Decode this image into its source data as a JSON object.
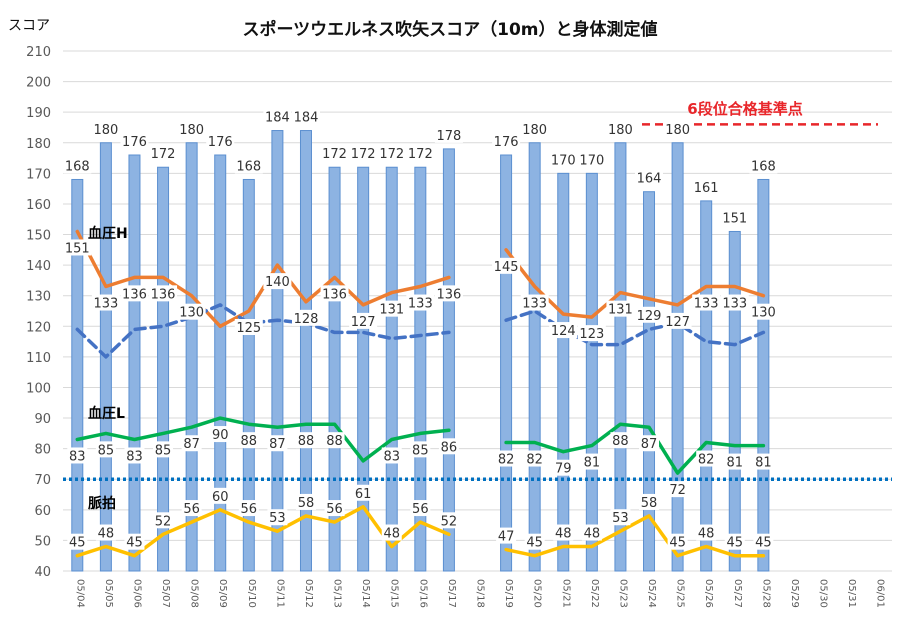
{
  "chart_data": {
    "type": "bar",
    "title": "スポーツウエルネス吹矢スコア（10m）と身体測定値",
    "ylabel": "スコア",
    "ylim": [
      40,
      210
    ],
    "yticks": [
      40,
      50,
      60,
      70,
      80,
      90,
      100,
      110,
      120,
      130,
      140,
      150,
      160,
      170,
      180,
      190,
      200,
      210
    ],
    "grid": true,
    "categories": [
      "05/04",
      "05/05",
      "05/06",
      "05/07",
      "05/08",
      "05/09",
      "05/10",
      "05/11",
      "05/12",
      "05/13",
      "05/14",
      "05/15",
      "05/16",
      "05/17",
      "05/18",
      "05/19",
      "05/20",
      "05/21",
      "05/22",
      "05/23",
      "05/24",
      "05/25",
      "05/26",
      "05/27",
      "05/28",
      "05/29",
      "05/30",
      "05/31",
      "06/01"
    ],
    "series": [
      {
        "kind": "bar",
        "color": "#8db3e2",
        "values": [
          168,
          180,
          176,
          172,
          180,
          176,
          168,
          184,
          184,
          172,
          172,
          172,
          172,
          178,
          null,
          176,
          180,
          170,
          170,
          180,
          164,
          180,
          161,
          151,
          168,
          null,
          null,
          null,
          null
        ],
        "labels": [
          "168",
          "180",
          "176",
          "172",
          "180",
          "176",
          "168",
          "184",
          "184",
          "172",
          "172",
          "172",
          "172",
          "178",
          "",
          "176",
          "180",
          "170",
          "170",
          "180",
          "164",
          "180",
          "161",
          "151",
          "168",
          "",
          "",
          "",
          ""
        ]
      },
      {
        "kind": "line",
        "name": "血圧H",
        "color": "#ed7d31",
        "values": [
          151,
          133,
          136,
          136,
          130,
          120,
          125,
          140,
          128,
          136,
          127,
          131,
          133,
          136,
          null,
          145,
          133,
          124,
          123,
          131,
          129,
          127,
          133,
          133,
          130,
          null,
          null,
          null,
          null
        ],
        "labels": [
          "151",
          "133",
          "136",
          "136",
          "130",
          "",
          "125",
          "140",
          "128",
          "136",
          "127",
          "131",
          "133",
          "136",
          "",
          "145",
          "133",
          "124",
          "123",
          "131",
          "129",
          "127",
          "133",
          "133",
          "130",
          "",
          "",
          "",
          ""
        ]
      },
      {
        "kind": "dashed",
        "color": "#4472c4",
        "values": [
          119,
          110,
          119,
          120,
          123,
          127,
          121,
          122,
          121,
          118,
          118,
          116,
          117,
          118,
          null,
          122,
          125,
          119,
          114,
          114,
          119,
          121,
          115,
          114,
          118,
          null,
          null,
          null,
          null
        ]
      },
      {
        "kind": "line",
        "name": "血圧L",
        "color": "#00b050",
        "values": [
          83,
          85,
          83,
          85,
          87,
          90,
          88,
          87,
          88,
          88,
          76,
          83,
          85,
          86,
          null,
          82,
          82,
          79,
          81,
          88,
          87,
          72,
          82,
          81,
          81,
          null,
          null,
          null,
          null
        ],
        "labels": [
          "83",
          "85",
          "83",
          "85",
          "87",
          "90",
          "88",
          "87",
          "88",
          "88",
          "",
          "83",
          "85",
          "86",
          "",
          "82",
          "82",
          "79",
          "81",
          "88",
          "87",
          "72",
          "82",
          "81",
          "81",
          "",
          "",
          "",
          ""
        ]
      },
      {
        "kind": "line",
        "name": "脈拍",
        "color": "#ffc000",
        "values": [
          45,
          48,
          45,
          52,
          56,
          60,
          56,
          53,
          58,
          56,
          61,
          48,
          56,
          52,
          null,
          47,
          45,
          48,
          48,
          53,
          58,
          45,
          48,
          45,
          45,
          null,
          null,
          null,
          null
        ],
        "labels": [
          "45",
          "48",
          "45",
          "52",
          "56",
          "60",
          "56",
          "53",
          "58",
          "56",
          "61",
          "48",
          "56",
          "52",
          "",
          "47",
          "45",
          "48",
          "48",
          "53",
          "58",
          "45",
          "48",
          "45",
          "45",
          "",
          "",
          "",
          ""
        ]
      }
    ],
    "reference_lines": [
      {
        "value": 186,
        "label": "6段位合格基準点",
        "color": "#e8262a",
        "style": "dashed"
      },
      {
        "value": 70,
        "label": "",
        "color": "#0070c0",
        "style": "dotted"
      }
    ]
  }
}
